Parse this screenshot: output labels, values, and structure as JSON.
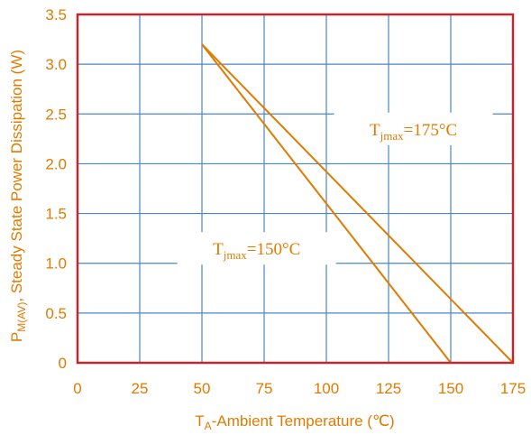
{
  "chart_data": {
    "type": "line",
    "xlabel": {
      "main": "T",
      "sub": "A",
      "rest": "-Ambient Temperature (℃)"
    },
    "ylabel": {
      "main": "P",
      "sub": "M(AV)",
      "rest": ", Steady State Power Dissipation (W)"
    },
    "xlim": [
      0,
      175
    ],
    "ylim": [
      0,
      3.5
    ],
    "x_ticks": [
      "0",
      "25",
      "50",
      "75",
      "100",
      "125",
      "150",
      "175"
    ],
    "y_ticks": [
      "0",
      "0.5",
      "1.0",
      "1.5",
      "2.0",
      "2.5",
      "3.0",
      "3.5"
    ],
    "grid": true,
    "series": [
      {
        "label": {
          "main": "T",
          "sub": "jmax",
          "rest": "=175°C"
        },
        "x": [
          50,
          175
        ],
        "y": [
          3.2,
          0
        ]
      },
      {
        "label": {
          "main": "T",
          "sub": "jmax",
          "rest": "=150°C"
        },
        "x": [
          50,
          150
        ],
        "y": [
          3.2,
          0
        ]
      }
    ],
    "colors": {
      "line": "#e07b00",
      "text": "#e07b00",
      "grid": "#4a86c8",
      "frame": "#c0282f"
    }
  }
}
